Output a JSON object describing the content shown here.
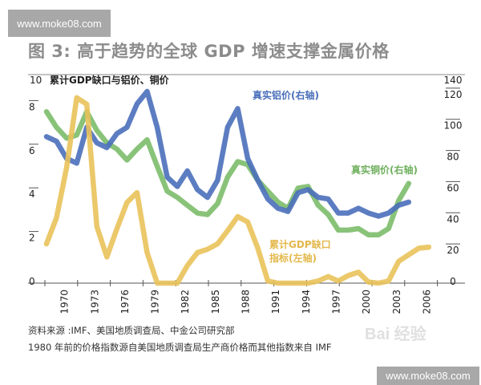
{
  "watermark": {
    "top": "www.moke08.com",
    "bottom": "www.moke08.com",
    "baidu": "Bai 经验"
  },
  "chart_data": {
    "type": "line",
    "title": "图 3: 高于趋势的全球 GDP 增速支撑金属价格",
    "subtitle": "累计GDP缺口与铝价、铜价",
    "x": [
      1968,
      1969,
      1970,
      1971,
      1972,
      1973,
      1974,
      1975,
      1976,
      1977,
      1978,
      1979,
      1980,
      1981,
      1982,
      1983,
      1984,
      1985,
      1986,
      1987,
      1988,
      1989,
      1990,
      1991,
      1992,
      1993,
      1994,
      1995,
      1996,
      1997,
      1998,
      1999,
      2000,
      2001,
      2002,
      2003,
      2004,
      2005,
      2006
    ],
    "x_tick_labels": [
      "1970",
      "1973",
      "1976",
      "1979",
      "1982",
      "1985",
      "1988",
      "1991",
      "1994",
      "1997",
      "2000",
      "2003",
      "2006"
    ],
    "y_left": {
      "range": [
        0,
        10
      ],
      "ticks": [
        "0",
        "2",
        "4",
        "6",
        "8",
        "10"
      ]
    },
    "y_right": {
      "range": [
        0,
        140
      ],
      "ticks": [
        "0",
        "20",
        "40",
        "60",
        "80",
        "100",
        "120",
        "140"
      ]
    },
    "grid": false,
    "series": [
      {
        "name": "真实铝价(右轴)",
        "axis": "right",
        "color": "#4a6fba",
        "values": [
          94,
          91,
          80,
          77,
          100,
          90,
          87,
          96,
          100,
          115,
          123,
          100,
          68,
          62,
          72,
          60,
          55,
          66,
          100,
          112,
          80,
          66,
          54,
          48,
          46,
          58,
          60,
          55,
          54,
          45,
          45,
          48,
          45,
          43,
          45,
          50,
          52,
          null,
          null
        ]
      },
      {
        "name": "真实铜价(右轴)",
        "axis": "right",
        "color": "#7cbd6a",
        "values": [
          110,
          100,
          93,
          95,
          110,
          98,
          90,
          86,
          79,
          86,
          92,
          75,
          59,
          55,
          50,
          45,
          44,
          51,
          68,
          78,
          76,
          66,
          59,
          52,
          48,
          61,
          62,
          50,
          44,
          34,
          34,
          35,
          31,
          31,
          35,
          53,
          64,
          null,
          null
        ]
      },
      {
        "name": "累计GDP缺口指标(左轴)",
        "name_lines": [
          "累计GDP缺口",
          "指标(左轴)"
        ],
        "axis": "left",
        "color": "#e9c25a",
        "values": [
          1.8,
          3.0,
          5.3,
          8.5,
          8.2,
          2.6,
          1.2,
          2.5,
          3.7,
          4.15,
          1.4,
          0,
          0,
          0,
          0.8,
          1.4,
          1.55,
          1.8,
          2.4,
          3.05,
          2.8,
          1.6,
          0.1,
          0,
          0,
          0,
          0,
          0.1,
          0.3,
          0.1,
          0.35,
          0.5,
          0.05,
          0,
          0.1,
          1.0,
          1.3,
          1.6,
          1.65
        ]
      }
    ]
  },
  "source": {
    "line1": "资料来源 :IMF、美国地质调查局、中金公司研究部",
    "line2": "1980 年前的价格指数源自美国地质调查局生产商价格而其他指数来自 IMF"
  }
}
